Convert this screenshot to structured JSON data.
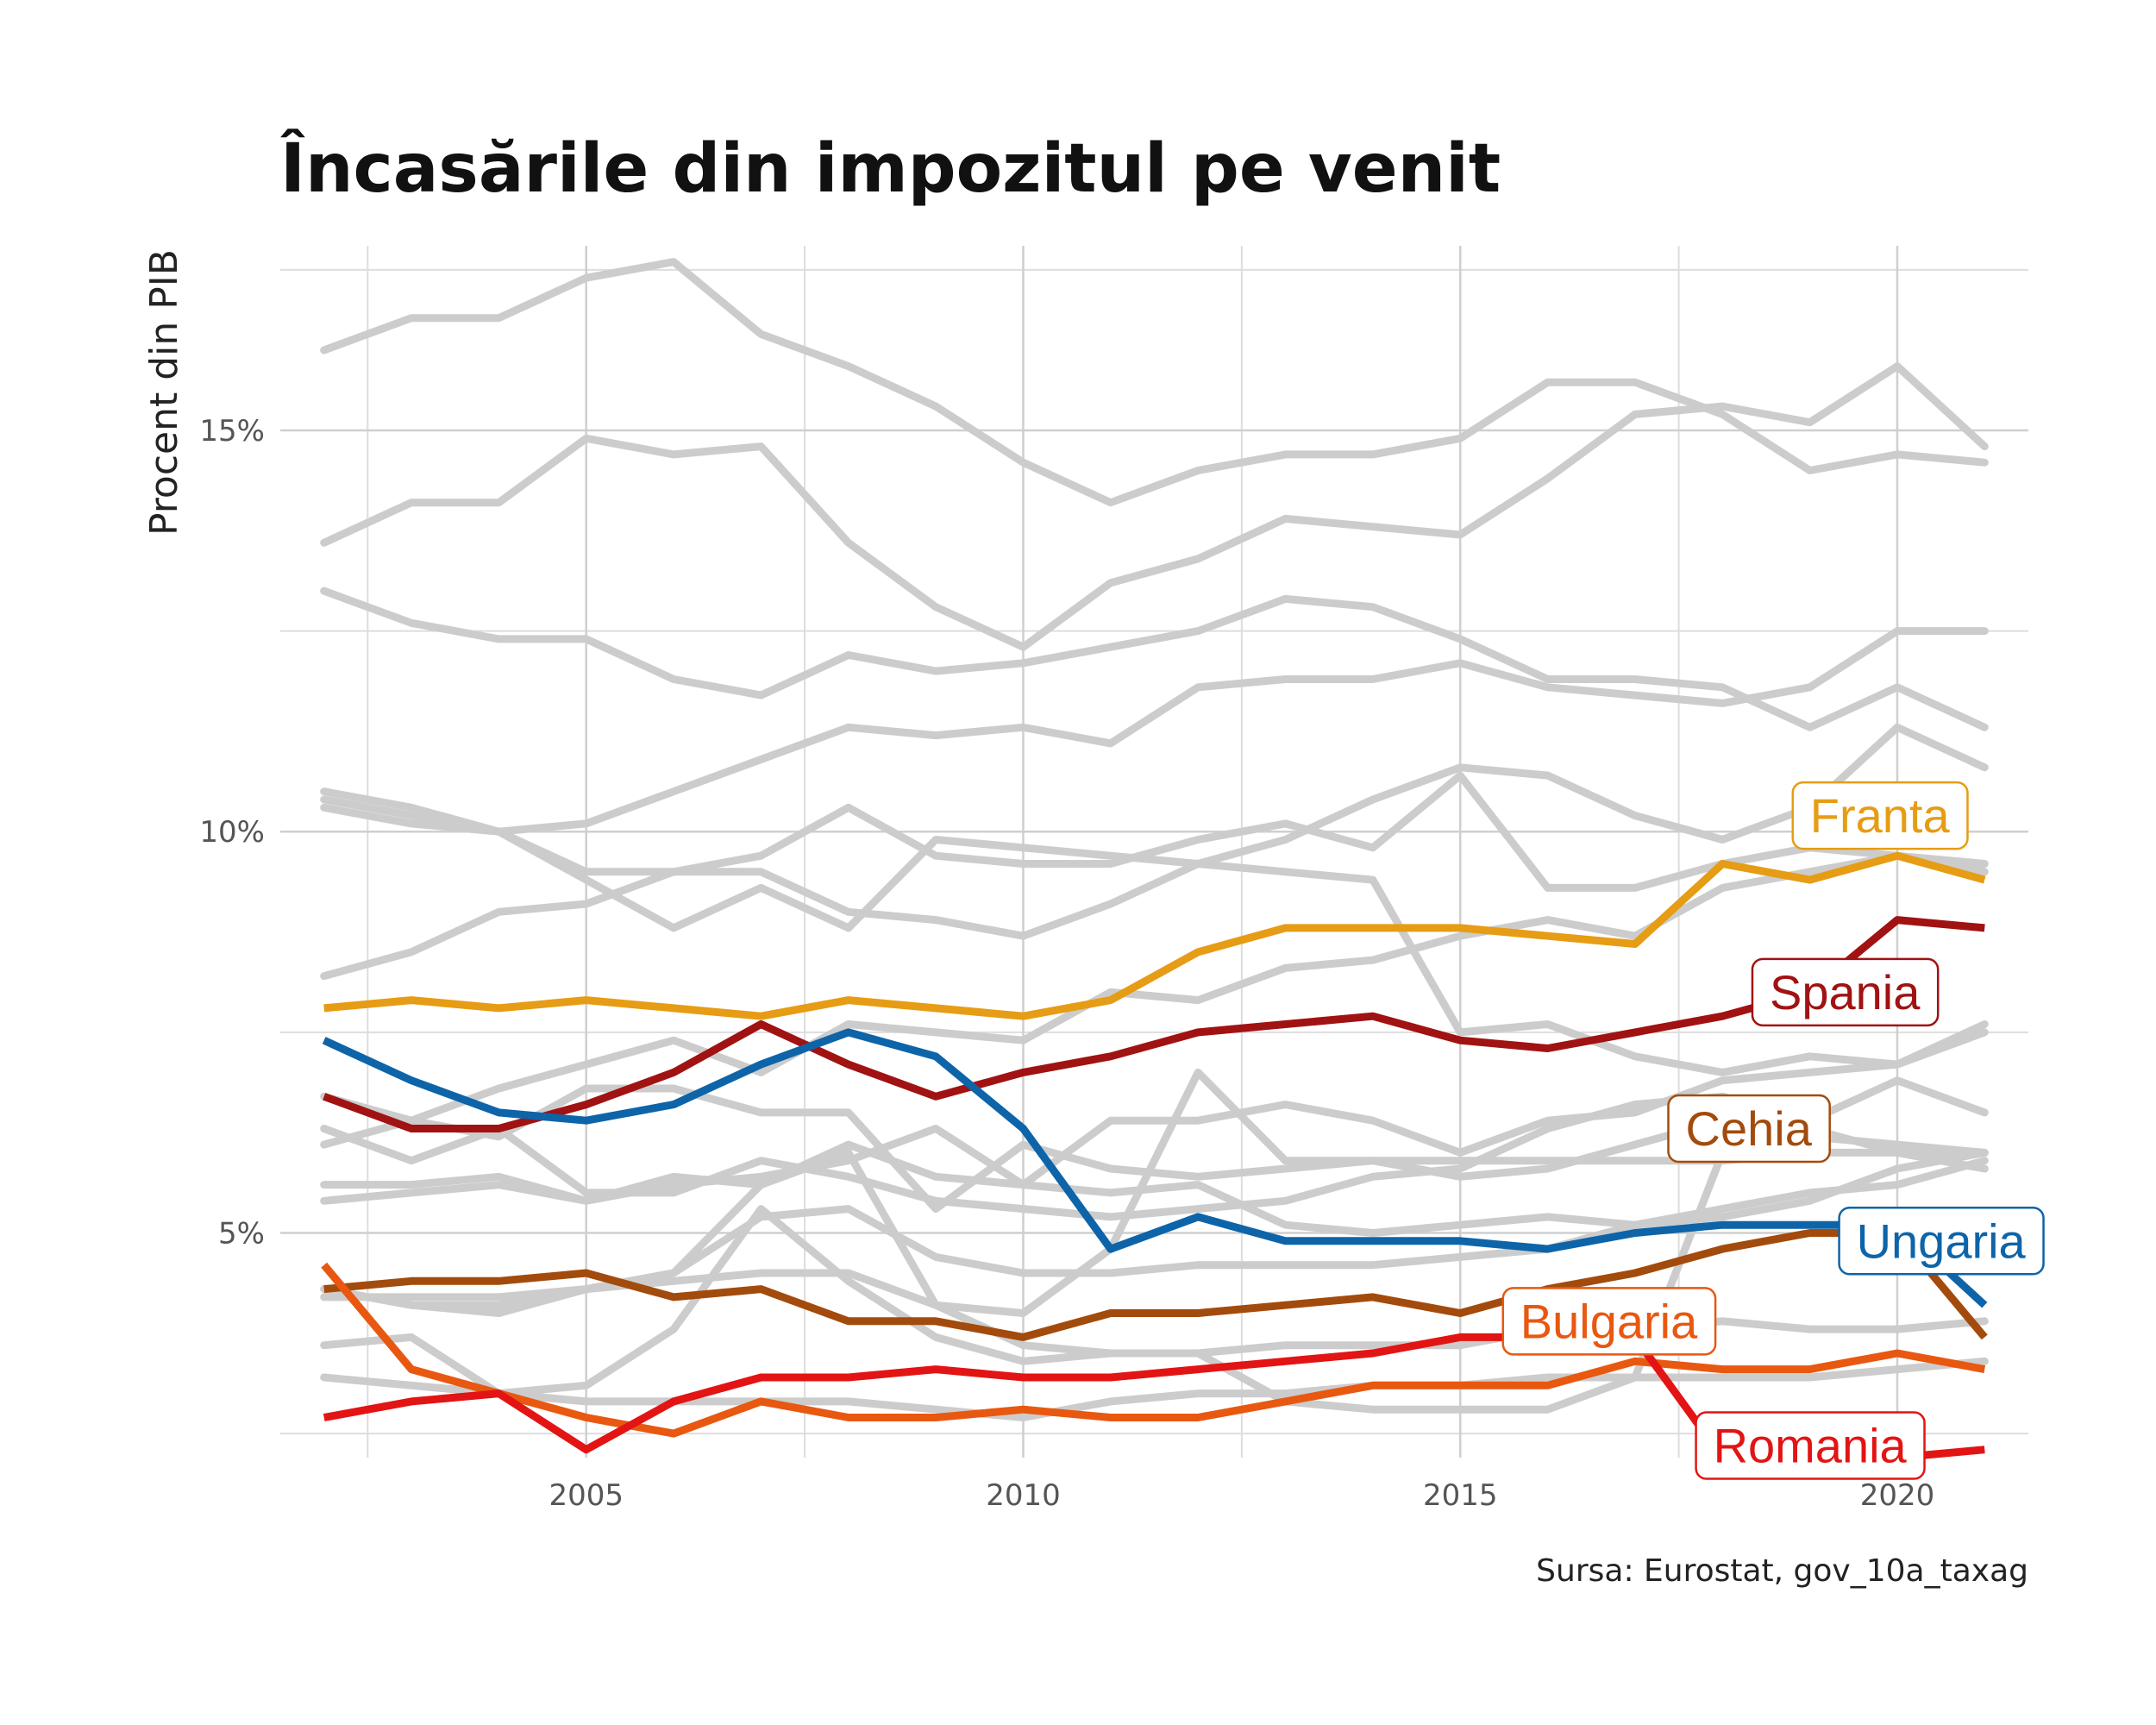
{
  "chart_data": {
    "type": "line",
    "title": "Încasările din impozitul pe venit",
    "xlabel": "",
    "ylabel": "Procent din PIB",
    "caption": "Sursa: Eurostat, gov_10a_taxag",
    "x": [
      2002,
      2003,
      2004,
      2005,
      2006,
      2007,
      2008,
      2009,
      2010,
      2011,
      2012,
      2013,
      2014,
      2015,
      2016,
      2017,
      2018,
      2019,
      2020,
      2021
    ],
    "xlim": [
      2001.5,
      2021.5
    ],
    "ylim": [
      2.2,
      17.3
    ],
    "x_ticks": [
      {
        "value": 2005,
        "label": "2005"
      },
      {
        "value": 2010,
        "label": "2010"
      },
      {
        "value": 2015,
        "label": "2015"
      },
      {
        "value": 2020,
        "label": "2020"
      }
    ],
    "y_ticks": [
      {
        "value": 5,
        "label": "5%"
      },
      {
        "value": 10,
        "label": "10%"
      },
      {
        "value": 15,
        "label": "15%"
      }
    ],
    "y_minor": [
      2.5,
      7.5,
      12.5,
      17.0
    ],
    "x_minor": [
      2002.5,
      2007.5,
      2012.5,
      2017.5
    ],
    "grid": true,
    "legend": "none",
    "background_color": "#cccccc",
    "background_series": [
      [
        16.0,
        16.4,
        16.4,
        16.9,
        17.1,
        16.2,
        15.8,
        15.3,
        14.6,
        14.1,
        14.5,
        14.7,
        14.7,
        14.9,
        15.6,
        15.6,
        15.2,
        14.5,
        14.7,
        14.6
      ],
      [
        13.6,
        14.1,
        14.1,
        14.9,
        14.7,
        14.8,
        13.6,
        12.8,
        12.3,
        13.1,
        13.4,
        13.9,
        13.8,
        13.7,
        14.4,
        15.2,
        15.3,
        15.1,
        15.8,
        14.8
      ],
      [
        13.0,
        12.6,
        12.4,
        12.4,
        11.9,
        11.7,
        12.2,
        12.0,
        12.1,
        12.3,
        12.5,
        12.9,
        12.8,
        12.4,
        11.9,
        11.9,
        11.8,
        11.3,
        11.8,
        11.3
      ],
      [
        10.3,
        10.1,
        10.0,
        10.1,
        10.5,
        10.9,
        11.3,
        11.2,
        11.3,
        11.1,
        11.8,
        11.9,
        11.9,
        12.1,
        11.8,
        11.7,
        11.6,
        11.8,
        12.5,
        12.5
      ],
      [
        10.5,
        10.3,
        10.0,
        9.5,
        9.5,
        9.5,
        9.0,
        8.9,
        8.7,
        9.1,
        9.6,
        9.9,
        10.4,
        10.8,
        10.7,
        10.2,
        9.9,
        10.3,
        11.3,
        10.8
      ],
      [
        10.4,
        10.2,
        10.0,
        9.4,
        8.8,
        9.3,
        8.8,
        9.9,
        9.8,
        9.7,
        9.6,
        9.5,
        9.4,
        7.5,
        7.6,
        7.2,
        7.0,
        7.2,
        7.1,
        7.6
      ],
      [
        8.2,
        8.5,
        9.0,
        9.1,
        9.5,
        9.7,
        10.3,
        9.7,
        9.6,
        9.6,
        9.9,
        10.1,
        9.8,
        10.7,
        9.3,
        9.3,
        9.6,
        9.8,
        9.7,
        9.6
      ],
      [
        6.7,
        6.4,
        6.8,
        7.1,
        7.4,
        7.0,
        7.6,
        7.5,
        7.4,
        8.0,
        7.9,
        8.3,
        8.4,
        8.7,
        8.9,
        8.7,
        9.3,
        9.5,
        9.7,
        9.5
      ],
      [
        6.1,
        6.4,
        6.2,
        6.8,
        6.8,
        6.5,
        6.5,
        5.3,
        6.1,
        5.8,
        5.7,
        5.8,
        5.9,
        5.7,
        5.8,
        6.1,
        6.4,
        6.3,
        6.0,
        5.8
      ],
      [
        5.4,
        5.5,
        5.6,
        5.4,
        5.6,
        5.7,
        5.9,
        6.3,
        5.6,
        6.4,
        6.4,
        6.6,
        6.4,
        6.0,
        6.4,
        6.5,
        6.9,
        7.0,
        7.1,
        7.5
      ],
      [
        5.6,
        5.6,
        5.7,
        5.4,
        5.7,
        5.6,
        6.1,
        5.7,
        5.6,
        5.5,
        5.6,
        5.1,
        5.0,
        5.1,
        5.2,
        5.1,
        5.2,
        5.4,
        5.8,
        6.0
      ],
      [
        6.3,
        5.9,
        6.3,
        5.5,
        5.5,
        5.9,
        5.7,
        5.4,
        5.3,
        5.2,
        5.3,
        5.4,
        5.7,
        5.8,
        6.3,
        6.6,
        6.7,
        6.4,
        6.9,
        6.5
      ],
      [
        4.3,
        4.1,
        4.0,
        4.3,
        4.5,
        5.2,
        5.3,
        4.7,
        4.5,
        4.5,
        4.6,
        4.6,
        4.6,
        4.7,
        4.8,
        5.1,
        5.3,
        5.5,
        5.6,
        5.9
      ],
      [
        3.6,
        3.7,
        3.0,
        3.1,
        3.8,
        5.3,
        4.4,
        3.7,
        3.4,
        3.5,
        3.5,
        3.6,
        3.6,
        3.6,
        3.8,
        3.8,
        3.9,
        3.8,
        3.8,
        3.9
      ],
      [
        4.2,
        4.2,
        4.2,
        4.3,
        4.4,
        4.5,
        4.5,
        4.1,
        4.0,
        4.8,
        7.0,
        5.9,
        5.9,
        5.9,
        5.9,
        5.9,
        5.9,
        6.0,
        6.0,
        6.0
      ],
      [
        3.2,
        3.1,
        3.0,
        2.9,
        2.9,
        2.9,
        2.9,
        2.8,
        2.7,
        2.9,
        3.0,
        3.0,
        3.1,
        3.1,
        3.2,
        3.2,
        3.2,
        3.2,
        3.3,
        3.4
      ],
      [
        4.3,
        4.1,
        4.1,
        4.3,
        4.5,
        5.6,
        6.0,
        4.1,
        3.6,
        3.5,
        3.5,
        2.9,
        2.8,
        2.8,
        2.8,
        3.2,
        6.0,
        6.2,
        6.1,
        6.0
      ]
    ],
    "series": [
      {
        "name": "Franta",
        "color": "#e69c14",
        "values": [
          7.8,
          7.9,
          7.8,
          7.9,
          7.8,
          7.7,
          7.9,
          7.8,
          7.7,
          7.9,
          8.5,
          8.8,
          8.8,
          8.8,
          8.7,
          8.6,
          9.6,
          9.4,
          9.7,
          9.4
        ]
      },
      {
        "name": "Spania",
        "color": "#a11212",
        "values": [
          6.7,
          6.3,
          6.3,
          6.6,
          7.0,
          7.6,
          7.1,
          6.7,
          7.0,
          7.2,
          7.5,
          7.6,
          7.7,
          7.4,
          7.3,
          7.5,
          7.7,
          8.0,
          8.9,
          8.8
        ]
      },
      {
        "name": "Cehia",
        "color": "#a34b0c",
        "values": [
          4.3,
          4.4,
          4.4,
          4.5,
          4.2,
          4.3,
          3.9,
          3.9,
          3.7,
          4.0,
          4.0,
          4.1,
          4.2,
          4.0,
          4.3,
          4.5,
          4.8,
          5.0,
          5.0,
          3.7
        ]
      },
      {
        "name": "Ungaria",
        "color": "#0e64a8",
        "values": [
          7.4,
          6.9,
          6.5,
          6.4,
          6.6,
          7.1,
          7.5,
          7.2,
          6.3,
          4.8,
          5.2,
          4.9,
          4.9,
          4.9,
          4.8,
          5.0,
          5.1,
          5.1,
          5.1,
          4.1
        ]
      },
      {
        "name": "Bulgaria",
        "color": "#e85810",
        "values": [
          4.6,
          3.3,
          3.0,
          2.7,
          2.5,
          2.9,
          2.7,
          2.7,
          2.8,
          2.7,
          2.7,
          2.9,
          3.1,
          3.1,
          3.1,
          3.4,
          3.3,
          3.3,
          3.5,
          3.3
        ]
      },
      {
        "name": "Romania",
        "color": "#e31414",
        "values": [
          2.7,
          2.9,
          3.0,
          2.3,
          2.9,
          3.2,
          3.2,
          3.3,
          3.2,
          3.2,
          3.3,
          3.4,
          3.5,
          3.7,
          3.7,
          3.7,
          2.2,
          2.2,
          2.2,
          2.3
        ]
      }
    ],
    "direct_labels": [
      {
        "text": "Franta",
        "series": "Franta",
        "x": 2019.8,
        "y": 10.2
      },
      {
        "text": "Spania",
        "series": "Spania",
        "x": 2019.4,
        "y": 8.0
      },
      {
        "text": "Cehia",
        "series": "Cehia",
        "x": 2018.3,
        "y": 6.3
      },
      {
        "text": "Ungaria",
        "series": "Ungaria",
        "x": 2020.5,
        "y": 4.9
      },
      {
        "text": "Bulgaria",
        "series": "Bulgaria",
        "x": 2016.7,
        "y": 3.9
      },
      {
        "text": "Romania",
        "series": "Romania",
        "x": 2019.0,
        "y": 2.35
      }
    ]
  }
}
